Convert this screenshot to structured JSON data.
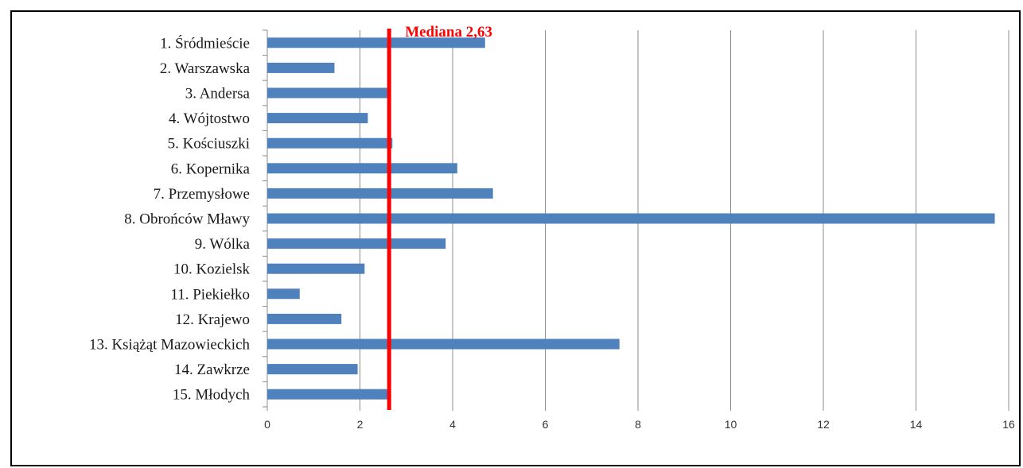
{
  "chart_data": {
    "type": "bar",
    "orientation": "horizontal",
    "categories": [
      "1. Śródmieście",
      "2. Warszawska",
      "3. Andersa",
      "4. Wójtostwo",
      "5. Kościuszki",
      "6. Kopernika",
      "7. Przemysłowe",
      "8. Obrońców Mławy",
      "9. Wólka",
      "10. Kozielsk",
      "11. Piekiełko",
      "12. Krajewo",
      "13. Książąt Mazowieckich",
      "14. Zawkrze",
      "15. Młodych"
    ],
    "values": [
      4.7,
      1.45,
      2.62,
      2.17,
      2.7,
      4.1,
      4.87,
      15.7,
      3.85,
      2.1,
      0.7,
      1.6,
      7.6,
      1.95,
      2.62
    ],
    "xlim": [
      0,
      16
    ],
    "xticks": [
      "0",
      "2",
      "4",
      "6",
      "8",
      "10",
      "12",
      "14",
      "16"
    ],
    "grid": "vertical",
    "median": {
      "value": 2.63,
      "label": "Mediana 2,63"
    },
    "colors": {
      "bar": "#4f81bd",
      "median": "#ff0000",
      "grid": "#8c8c8c"
    }
  }
}
